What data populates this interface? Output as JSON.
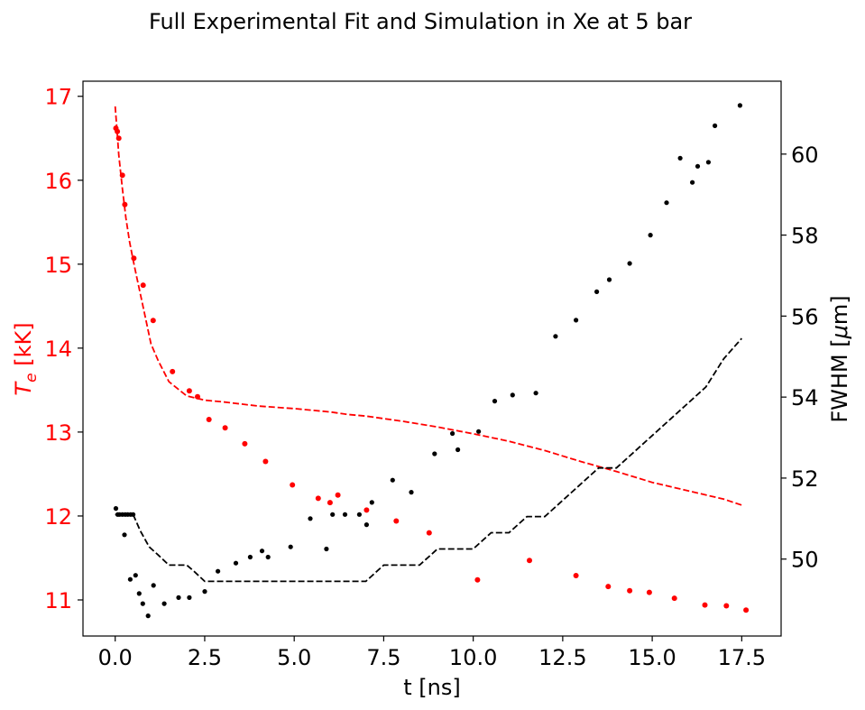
{
  "chart_data": {
    "type": "scatter",
    "title": "Full Experimental Fit and Simulation in Xe at 5 bar",
    "xlabel": "t [ns]",
    "ylabel_left": {
      "main": "T",
      "sub": "e",
      "rest": " [kK]"
    },
    "ylabel_right": {
      "main": "FWHM [",
      "greek": "μ",
      "rest": "m]"
    },
    "xlim": [
      -0.9,
      18.6
    ],
    "ylim_left": [
      10.57,
      17.18
    ],
    "ylim_right": [
      48.1,
      61.8
    ],
    "x_ticks": [
      0.0,
      2.5,
      5.0,
      7.5,
      10.0,
      12.5,
      15.0,
      17.5
    ],
    "x_tick_labels": [
      "0.0",
      "2.5",
      "5.0",
      "7.5",
      "10.0",
      "12.5",
      "15.0",
      "17.5"
    ],
    "y_left_ticks": [
      11,
      12,
      13,
      14,
      15,
      16,
      17
    ],
    "y_left_tick_labels": [
      "11",
      "12",
      "13",
      "14",
      "15",
      "16",
      "17"
    ],
    "y_right_ticks": [
      50,
      52,
      54,
      56,
      58,
      60
    ],
    "y_right_tick_labels": [
      "50",
      "52",
      "54",
      "56",
      "58",
      "60"
    ],
    "colors": {
      "temperature": "#ff0000",
      "fwhm": "#000000"
    },
    "grid": false,
    "series": [
      {
        "style": "points",
        "axis": "left",
        "color": "#ff0000",
        "x": [
          0.02,
          0.06,
          0.1,
          0.2,
          0.27,
          0.52,
          0.78,
          1.06,
          1.6,
          2.07,
          2.3,
          2.62,
          3.07,
          3.62,
          4.2,
          4.95,
          5.67,
          6.0,
          6.22,
          7.02,
          7.85,
          8.77,
          10.12,
          11.57,
          12.87,
          13.77,
          14.37,
          14.92,
          15.62,
          16.47,
          17.07,
          17.62
        ],
        "y": [
          16.62,
          16.58,
          16.5,
          16.06,
          15.71,
          15.07,
          14.75,
          14.33,
          13.72,
          13.49,
          13.42,
          13.15,
          13.05,
          12.86,
          12.65,
          12.37,
          12.21,
          12.16,
          12.25,
          12.07,
          11.94,
          11.8,
          11.24,
          11.47,
          11.29,
          11.16,
          11.11,
          11.09,
          11.02,
          10.94,
          10.93,
          10.88
        ]
      },
      {
        "style": "dashed-line",
        "axis": "left",
        "color": "#ff0000",
        "x": [
          0.0,
          0.05,
          0.1,
          0.2,
          0.3,
          0.4,
          0.5,
          0.6,
          0.8,
          1.0,
          1.2,
          1.5,
          2.0,
          2.5,
          3.0,
          4.0,
          5.0,
          6.0,
          6.5,
          7.0,
          8.0,
          9.0,
          10.0,
          11.0,
          12.0,
          13.0,
          14.0,
          15.0,
          16.0,
          17.0,
          17.5
        ],
        "y": [
          16.88,
          16.6,
          16.3,
          15.9,
          15.55,
          15.27,
          15.05,
          14.85,
          14.45,
          14.05,
          13.85,
          13.6,
          13.43,
          13.38,
          13.36,
          13.31,
          13.28,
          13.24,
          13.21,
          13.19,
          13.13,
          13.06,
          12.98,
          12.89,
          12.78,
          12.65,
          12.53,
          12.4,
          12.3,
          12.2,
          12.13
        ]
      },
      {
        "style": "points",
        "axis": "right",
        "color": "#000000",
        "x": [
          0.02,
          0.07,
          0.12,
          0.2,
          0.28,
          0.35,
          0.43,
          0.5,
          0.26,
          0.42,
          0.57,
          0.67,
          0.77,
          0.92,
          1.07,
          1.37,
          1.77,
          2.07,
          2.5,
          2.87,
          3.37,
          3.77,
          4.1,
          4.27,
          4.9,
          5.45,
          5.9,
          6.07,
          6.42,
          6.82,
          7.02,
          7.17,
          7.75,
          8.27,
          8.92,
          9.42,
          9.57,
          10.15,
          10.6,
          11.1,
          11.75,
          12.3,
          12.87,
          13.45,
          13.8,
          14.37,
          14.95,
          15.4,
          15.78,
          16.12,
          16.27,
          16.57,
          16.75,
          17.45
        ],
        "y": [
          51.25,
          51.1,
          51.1,
          51.1,
          51.1,
          51.1,
          51.1,
          51.1,
          50.6,
          49.5,
          49.6,
          49.15,
          48.9,
          48.6,
          49.35,
          48.9,
          49.05,
          49.05,
          49.2,
          49.7,
          49.9,
          50.05,
          50.2,
          50.05,
          50.3,
          51.0,
          50.25,
          51.1,
          51.1,
          51.1,
          50.85,
          51.4,
          51.95,
          51.65,
          52.6,
          53.1,
          52.7,
          53.15,
          53.9,
          54.05,
          54.1,
          55.5,
          55.9,
          56.6,
          56.9,
          57.3,
          58.0,
          58.8,
          59.9,
          59.3,
          59.7,
          59.8,
          60.7,
          61.2
        ]
      },
      {
        "style": "dashed-line",
        "axis": "right",
        "color": "#000000",
        "x": [
          0.0,
          0.1,
          0.2,
          0.3,
          0.4,
          0.5,
          0.7,
          0.95,
          1.2,
          1.5,
          2.0,
          2.2,
          2.5,
          3.0,
          3.5,
          4.0,
          4.5,
          5.0,
          5.5,
          6.0,
          6.5,
          7.0,
          7.5,
          8.0,
          8.5,
          9.0,
          9.5,
          10.0,
          10.5,
          11.0,
          11.5,
          12.0,
          12.5,
          13.0,
          13.5,
          14.0,
          14.5,
          15.0,
          15.5,
          16.0,
          16.5,
          17.0,
          17.5
        ],
        "y": [
          51.1,
          51.1,
          51.1,
          51.1,
          51.1,
          51.1,
          50.7,
          50.3,
          50.1,
          49.85,
          49.85,
          49.7,
          49.45,
          49.45,
          49.45,
          49.45,
          49.45,
          49.45,
          49.45,
          49.45,
          49.45,
          49.45,
          49.85,
          49.85,
          49.85,
          50.25,
          50.25,
          50.25,
          50.65,
          50.65,
          51.05,
          51.05,
          51.45,
          51.85,
          52.25,
          52.25,
          52.65,
          53.05,
          53.45,
          53.85,
          54.25,
          54.95,
          55.45
        ]
      }
    ]
  }
}
